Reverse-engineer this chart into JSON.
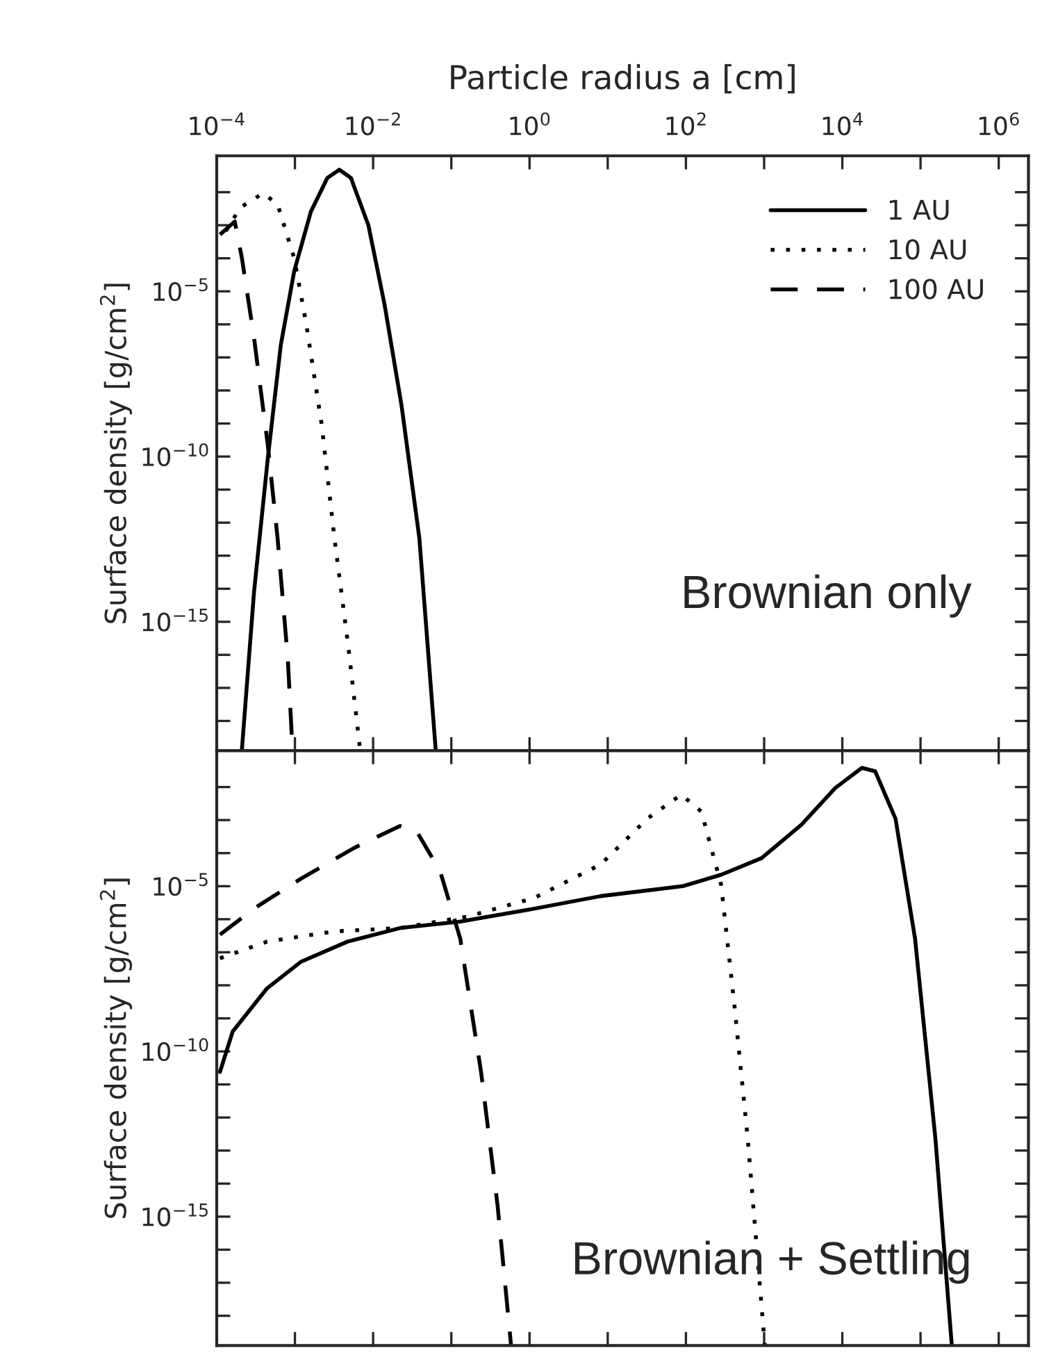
{
  "chart_data": [
    {
      "type": "line",
      "xlabel": "Particle radius a [cm]",
      "ylabel": "Surface density [g/cm$^{2}$]",
      "log": "xy",
      "legend": "top right",
      "grid": false,
      "xlim": [
        0.0001,
        2400000
      ],
      "ylim": [
        1.26e-19,
        0.126
      ],
      "xticks": [
        {
          "value": 0.0001,
          "label": "10$^{−4}$"
        },
        {
          "value": 0.001,
          "label": null
        },
        {
          "value": 0.01,
          "label": "10$^{−2}$"
        },
        {
          "value": 0.1,
          "label": null
        },
        {
          "value": 1,
          "label": "10$^{0}$"
        },
        {
          "value": 10,
          "label": null
        },
        {
          "value": 100,
          "label": "10$^{2}$"
        },
        {
          "value": 1000,
          "label": null
        },
        {
          "value": 10000,
          "label": "10$^{4}$"
        },
        {
          "value": 100000,
          "label": null
        },
        {
          "value": 1000000,
          "label": "10$^{6}$"
        }
      ],
      "yticks": [
        {
          "value": 1e-18,
          "label": null
        },
        {
          "value": 1e-17,
          "label": null
        },
        {
          "value": 1e-16,
          "label": null
        },
        {
          "value": 1e-15,
          "label": "10$^{−15}$"
        },
        {
          "value": 1e-14,
          "label": null
        },
        {
          "value": 1e-13,
          "label": null
        },
        {
          "value": 1e-12,
          "label": null
        },
        {
          "value": 1e-11,
          "label": null
        },
        {
          "value": 1e-10,
          "label": "10$^{−10}$"
        },
        {
          "value": 1e-09,
          "label": null
        },
        {
          "value": 1e-08,
          "label": null
        },
        {
          "value": 1e-07,
          "label": null
        },
        {
          "value": 1e-06,
          "label": null
        },
        {
          "value": 1e-05,
          "label": "10$^{−5}$"
        },
        {
          "value": 0.0001,
          "label": null
        },
        {
          "value": 0.001,
          "label": null
        },
        {
          "value": 0.01,
          "label": null
        }
      ],
      "annotations": [
        "Brownian only"
      ],
      "series": [
        {
          "name": "1 AU",
          "color": "#000000",
          "line_style": "solid",
          "x": [
            0.00021,
            0.0003,
            0.00045,
            0.00066,
            0.00098,
            0.0016,
            0.0026,
            0.0037,
            0.0052,
            0.0087,
            0.014,
            0.023,
            0.039,
            0.063
          ],
          "values": [
            1.4e-19,
            8.1e-15,
            8.9e-11,
            2.4e-07,
            4.1e-05,
            0.0026,
            0.027,
            0.048,
            0.027,
            0.001,
            4e-06,
            3.7e-09,
            3.4e-13,
            1.4e-19
          ]
        },
        {
          "name": "10 AU",
          "color": "#000000",
          "line_style": "dotted",
          "x": [
            0.00013,
            0.0002,
            0.00039,
            0.0006,
            0.00098,
            0.0014,
            0.0022,
            0.0032,
            0.0048,
            0.0068
          ],
          "values": [
            0.00066,
            0.0034,
            0.0093,
            0.0043,
            0.0001,
            9.8e-07,
            9.1e-10,
            3.4e-13,
            1.9e-16,
            1.4e-19
          ]
        },
        {
          "name": "100 AU",
          "color": "#000000",
          "line_style": "dashed",
          "x": [
            0.00011,
            0.00017,
            0.00021,
            0.0003,
            0.00045,
            0.0006,
            0.00081,
            0.00093
          ],
          "values": [
            0.00052,
            0.0013,
            0.0001,
            3.9e-07,
            2.2e-10,
            3.4e-13,
            7.8e-17,
            1.4e-19
          ]
        }
      ]
    },
    {
      "type": "line",
      "ylabel": "Surface density [g/cm$^{2}$]",
      "log": "xy",
      "grid": false,
      "tick_labels": "y",
      "xlim": [
        0.0001,
        2400000
      ],
      "ylim": [
        1.26e-19,
        0.126
      ],
      "xticks": [
        {
          "value": 0.0001,
          "label": null
        },
        {
          "value": 0.001,
          "label": null
        },
        {
          "value": 0.01,
          "label": null
        },
        {
          "value": 0.1,
          "label": null
        },
        {
          "value": 1,
          "label": null
        },
        {
          "value": 10,
          "label": null
        },
        {
          "value": 100,
          "label": null
        },
        {
          "value": 1000,
          "label": null
        },
        {
          "value": 10000,
          "label": null
        },
        {
          "value": 100000,
          "label": null
        },
        {
          "value": 1000000,
          "label": null
        }
      ],
      "yticks": [
        {
          "value": 1e-18,
          "label": null
        },
        {
          "value": 1e-17,
          "label": null
        },
        {
          "value": 1e-16,
          "label": null
        },
        {
          "value": 1e-15,
          "label": "10$^{−15}$"
        },
        {
          "value": 1e-14,
          "label": null
        },
        {
          "value": 1e-13,
          "label": null
        },
        {
          "value": 1e-12,
          "label": null
        },
        {
          "value": 1e-11,
          "label": null
        },
        {
          "value": 1e-10,
          "label": "10$^{−10}$"
        },
        {
          "value": 1e-09,
          "label": null
        },
        {
          "value": 1e-08,
          "label": null
        },
        {
          "value": 1e-07,
          "label": null
        },
        {
          "value": 1e-06,
          "label": null
        },
        {
          "value": 1e-05,
          "label": "10$^{−5}$"
        },
        {
          "value": 0.0001,
          "label": null
        },
        {
          "value": 0.001,
          "label": null
        },
        {
          "value": 0.01,
          "label": null
        }
      ],
      "annotations": [
        "Brownian + Settling"
      ],
      "series": [
        {
          "color": "#000000",
          "line_style": "solid",
          "x": [
            0.00011,
            0.00016,
            0.00044,
            0.0012,
            0.0047,
            0.022,
            0.13,
            0.93,
            8.1,
            91,
            280,
            930,
            3000,
            8100,
            17800,
            26300,
            47900,
            85100,
            155000,
            251000
          ],
          "values": [
            2.4e-11,
            4e-10,
            8.1e-09,
            5.2e-08,
            2.1e-07,
            5.4e-07,
            8.5e-07,
            1.9e-06,
            5e-06,
            1e-05,
            2.2e-05,
            7.1e-05,
            0.00072,
            0.0093,
            0.038,
            0.03,
            0.0011,
            2.6e-07,
            2.3e-13,
            1.3e-19
          ]
        },
        {
          "color": "#000000",
          "line_style": "dotted",
          "x": [
            0.00011,
            0.00044,
            0.0032,
            0.022,
            0.16,
            1.15,
            8.1,
            32,
            87,
            158,
            282,
            417,
            617,
            1020
          ],
          "values": [
            6.6e-08,
            2.1e-07,
            4.3e-07,
            5.4e-07,
            1.2e-06,
            4.4e-06,
            4.5e-05,
            0.0011,
            0.0059,
            0.0018,
            1.1e-05,
            2.5e-09,
            2.3e-13,
            1.3e-19
          ]
        },
        {
          "color": "#000000",
          "line_style": "dashed",
          "x": [
            0.00011,
            0.0003,
            0.0012,
            0.0056,
            0.022,
            0.036,
            0.072,
            0.13,
            0.24,
            0.39,
            0.58
          ],
          "values": [
            3.4e-07,
            2.1e-06,
            1.7e-05,
            0.00014,
            0.00066,
            0.00046,
            2.8e-05,
            2.6e-07,
            2.4e-11,
            2.2e-15,
            1.3e-19
          ]
        }
      ]
    }
  ]
}
